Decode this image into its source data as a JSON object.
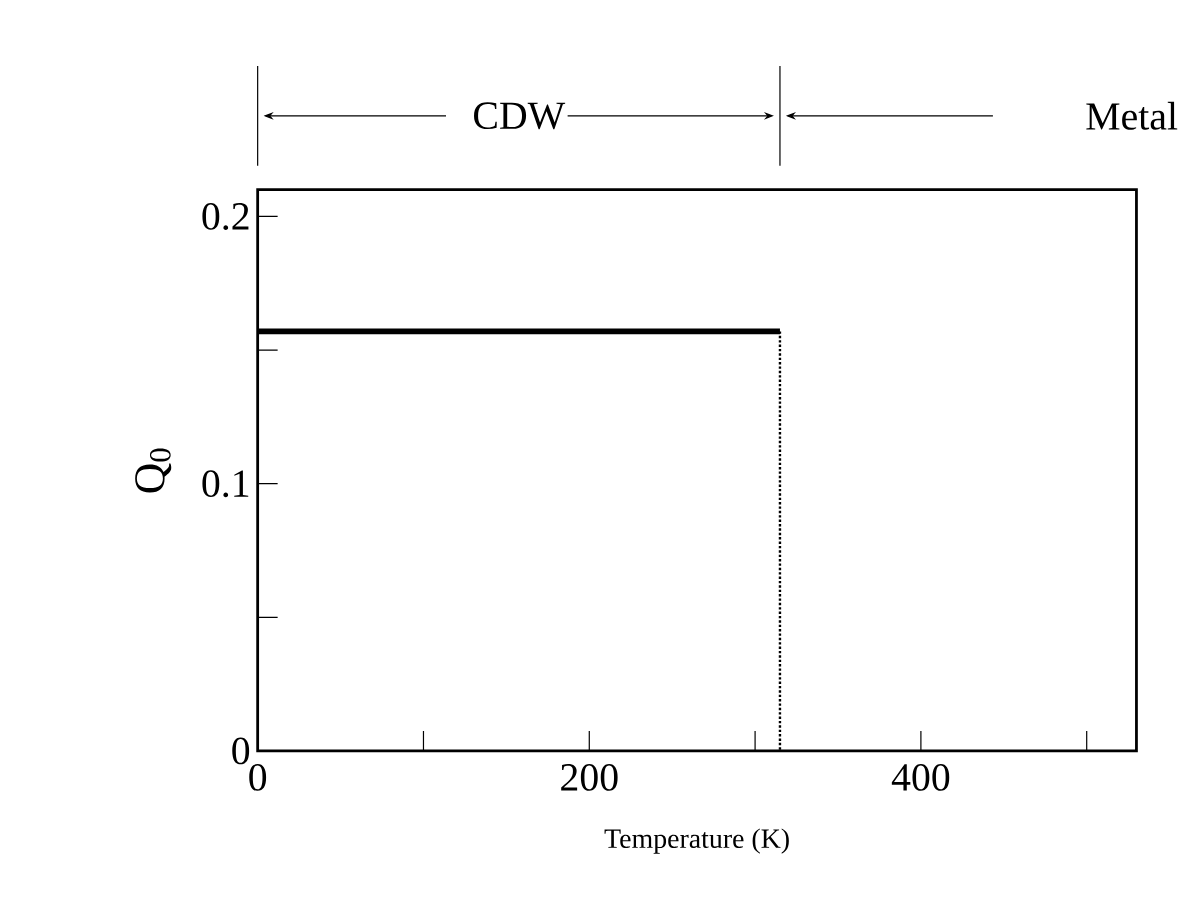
{
  "chart_data": {
    "type": "line",
    "xlabel": "Temperature   (K)",
    "ylabel": "Q$_{0}$",
    "x": [
      0,
      315
    ],
    "series": [
      {
        "color": "#000000",
        "values": [
          0.157,
          0.157
        ],
        "line_style": "solid"
      },
      {
        "color": "#000000",
        "x": [
          315,
          315
        ],
        "values": [
          0.157,
          0
        ],
        "line_style": "dotted"
      }
    ],
    "annotations": [
      "CDW",
      "Metal"
    ],
    "xlim": [
      0,
      530
    ],
    "ylim": [
      0,
      0.21
    ],
    "xticks": [
      0,
      {
        "value": 100,
        "label": null
      },
      200,
      {
        "value": 300,
        "label": null
      },
      400,
      {
        "value": 500,
        "label": null
      }
    ],
    "yticks": [
      0,
      {
        "value": 0.05,
        "label": null
      },
      0.1,
      {
        "value": 0.15,
        "label": null
      },
      0.2
    ],
    "marker": "none"
  }
}
